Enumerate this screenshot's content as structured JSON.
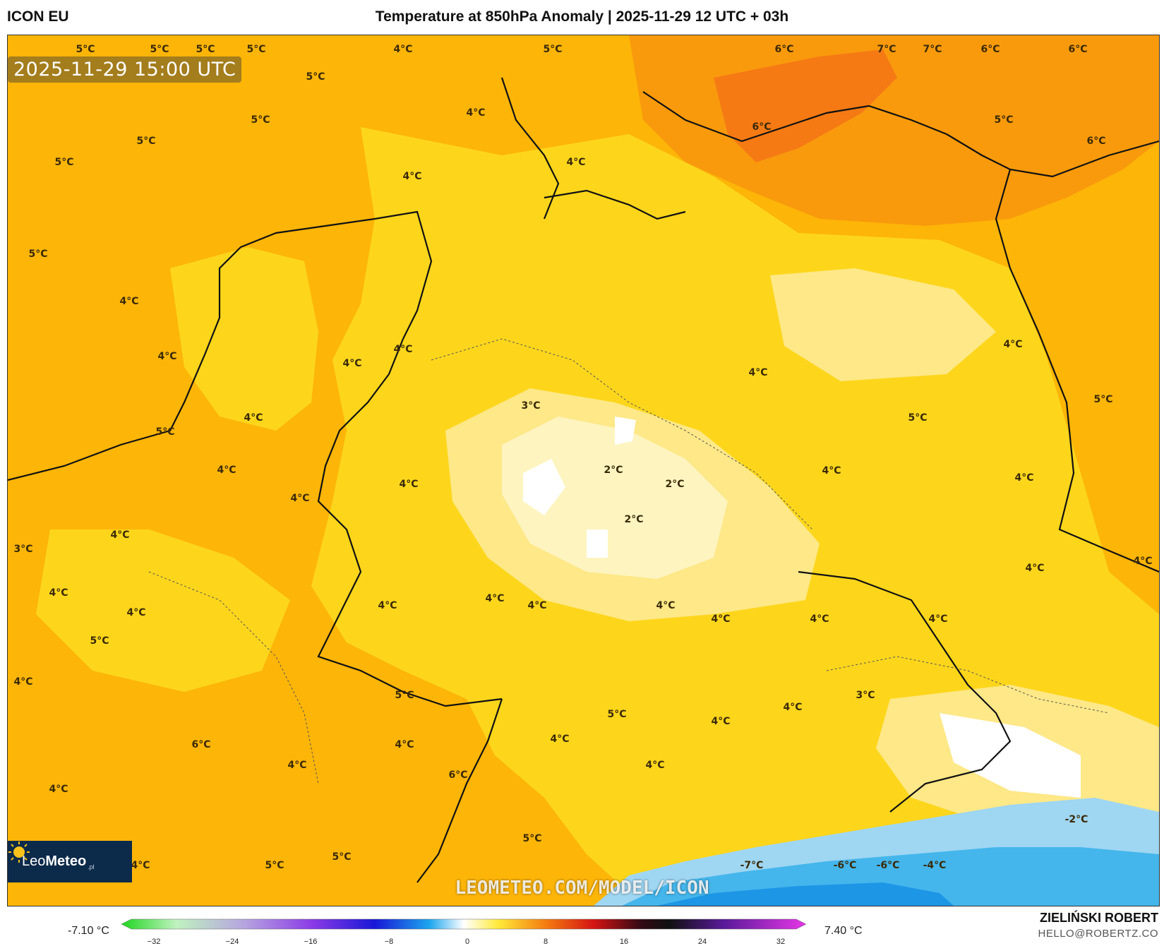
{
  "header": {
    "model": "ICON EU",
    "title": "Temperature at 850hPa Anomaly | 2025-11-29 12 UTC + 03h"
  },
  "map": {
    "timestamp": "2025-11-29 15:00 UTC",
    "watermark": "LEOMETEO.COM/MODEL/ICON",
    "logo": {
      "light": "Leo",
      "bold": "Meteo",
      "suffix": ".pl"
    },
    "labels": [
      "5°C",
      "5°C",
      "5°C",
      "5°C",
      "4°C",
      "5°C",
      "6°C",
      "7°C",
      "7°C",
      "6°C",
      "6°C",
      "5°C",
      "4°C",
      "5°C",
      "5°C",
      "6°C",
      "5°C",
      "6°C",
      "4°C",
      "4°C",
      "5°C",
      "5°C",
      "4°C",
      "4°C",
      "4°C",
      "4°C",
      "3°C",
      "5°C",
      "4°C",
      "5°C",
      "4°C",
      "4°C",
      "2°C",
      "2°C",
      "4°C",
      "4°C",
      "2°C",
      "5°C",
      "3°C",
      "4°C",
      "4°C",
      "4°C",
      "4°C",
      "4°C",
      "4°C",
      "4°C",
      "4°C",
      "4°C",
      "4°C",
      "4°C",
      "4°C",
      "4°C",
      "4°C",
      "4°C",
      "5°C",
      "5°C",
      "3°C",
      "4°C",
      "6°C",
      "4°C",
      "5°C",
      "4°C",
      "4°C",
      "4°C",
      "6°C",
      "4°C",
      "4°C",
      "4°C",
      "5°C",
      "5°C",
      "5°C",
      "4°C",
      "-2°C",
      "-7°C",
      "-6°C",
      "-6°C",
      "-4°C"
    ],
    "colors": {
      "base": "#fdb508",
      "warm": "#f99a0c",
      "hot": "#f57a14",
      "light": "#fdd61c",
      "pale": "#fee887",
      "cream": "#fef4c0",
      "white": "#ffffff",
      "cold": "#9fd6f2",
      "colder": "#44b6ec",
      "coldest": "#1e96e6"
    }
  },
  "colorbar": {
    "min_label": "-7.10 °C",
    "max_label": "7.40 °C",
    "ticks": [
      "−32",
      "−24",
      "−16",
      "−8",
      "0",
      "8",
      "16",
      "24",
      "32"
    ],
    "stops": [
      "#1fd61f",
      "#bff2bf",
      "#b6a4e0",
      "#8a3ae6",
      "#1818d6",
      "#1ea6ee",
      "#ffffff",
      "#ffea3a",
      "#f47c10",
      "#d41414",
      "#300a14",
      "#101010",
      "#5a1a9a",
      "#e636e6"
    ]
  },
  "credit": {
    "name": "ZIELIŃSKI ROBERT",
    "email": "HELLO@ROBERTZ.CO"
  }
}
